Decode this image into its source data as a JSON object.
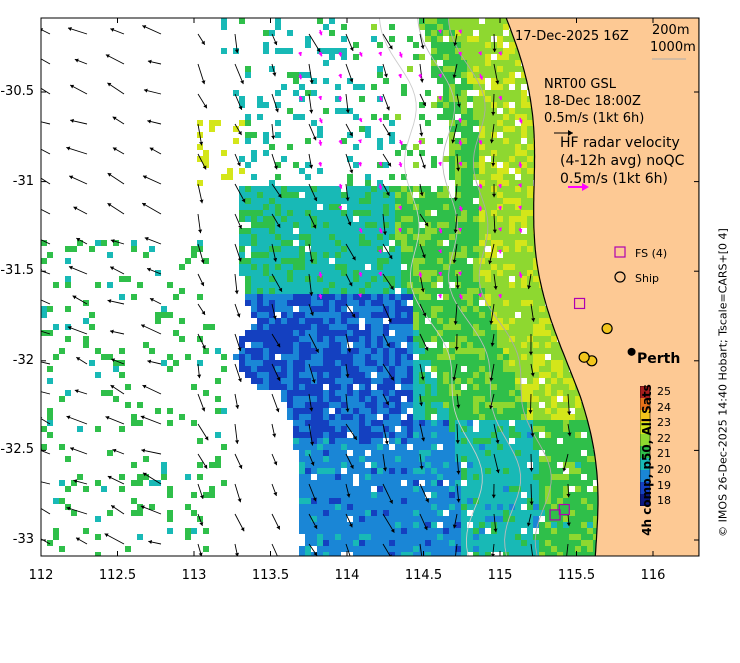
{
  "header": {
    "date": "17-Dec-2025 16Z",
    "contour_200": "200m",
    "contour_1000": "1000m"
  },
  "model_box": {
    "line1": "NRT00 GSL",
    "line2": "18-Dec 18:00Z",
    "line3": "0.5m/s (1kt 6h)"
  },
  "radar_box": {
    "line1": "HF radar velocity",
    "line2": "(4-12h avg) noQC",
    "line3": "0.5m/s (1kt 6h)"
  },
  "legend": {
    "fs_label": "FS (4)",
    "ship_label": "Ship"
  },
  "city": {
    "name": "Perth",
    "lon": 115.86,
    "lat": -31.95
  },
  "colorbar": {
    "title": "4h comp, p50, All Sats",
    "ticks": [
      "25",
      "24",
      "23",
      "22",
      "21",
      "20",
      "19",
      "18"
    ],
    "colors": [
      "#a51d1d",
      "#e8721a",
      "#f2c51c",
      "#d4e61a",
      "#8ed830",
      "#2fbf4a",
      "#18b9b6",
      "#1a86d6",
      "#1440c0",
      "#0a1880"
    ]
  },
  "credit": "© IMOS 26-Dec-2025 14:40 Hobart; Tscale=CARS+[0 4]",
  "axes": {
    "x_ticks": [
      "112",
      "112.5",
      "113",
      "113.5",
      "114",
      "114.5",
      "115",
      "115.5",
      "116"
    ],
    "y_ticks": [
      "-30.5",
      "-31",
      "-31.5",
      "-32",
      "-32.5",
      "-33"
    ],
    "xlim": [
      112,
      116.2
    ],
    "ylim": [
      -33.1,
      -30
    ]
  },
  "colors": {
    "land": "#fdc994",
    "coast": "#000000",
    "model_arrow": "#ff00ff",
    "radar_arrow": "#000000"
  }
}
